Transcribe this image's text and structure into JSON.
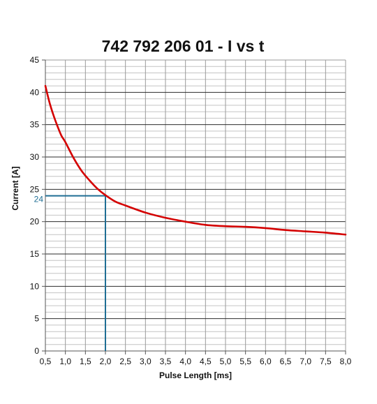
{
  "chart_data": {
    "type": "line",
    "title": "742 792 206 01  -  I vs t",
    "xlabel": "Pulse Length [ms]",
    "ylabel": "Current [A]",
    "xlim": [
      0.5,
      8.0
    ],
    "ylim": [
      0,
      45
    ],
    "x_ticks": [
      "0,5",
      "1,0",
      "1,5",
      "2,0",
      "2,5",
      "3,0",
      "3,5",
      "4,0",
      "4,5",
      "5,0",
      "5,5",
      "6,0",
      "6,5",
      "7,0",
      "7,5",
      "8,0"
    ],
    "y_ticks": [
      "0",
      "5",
      "10",
      "15",
      "20",
      "25",
      "30",
      "35",
      "40",
      "45"
    ],
    "grid": true,
    "series": [
      {
        "color": "#d40000",
        "x": [
          0.5,
          0.6,
          0.7,
          0.8,
          0.9,
          1.0,
          1.2,
          1.4,
          1.6,
          1.8,
          2.0,
          2.25,
          2.5,
          3.0,
          3.5,
          4.0,
          4.5,
          5.0,
          5.5,
          6.0,
          6.5,
          7.0,
          7.5,
          8.0
        ],
        "y": [
          41.0,
          38.5,
          36.5,
          34.8,
          33.3,
          32.3,
          29.9,
          27.9,
          26.4,
          25.1,
          24.1,
          23.1,
          22.5,
          21.4,
          20.6,
          20.0,
          19.5,
          19.3,
          19.2,
          19.0,
          18.7,
          18.5,
          18.3,
          18.0
        ]
      }
    ],
    "marker": {
      "x": 2.0,
      "y": 24,
      "label": "24",
      "color": "#1f6e94"
    }
  }
}
